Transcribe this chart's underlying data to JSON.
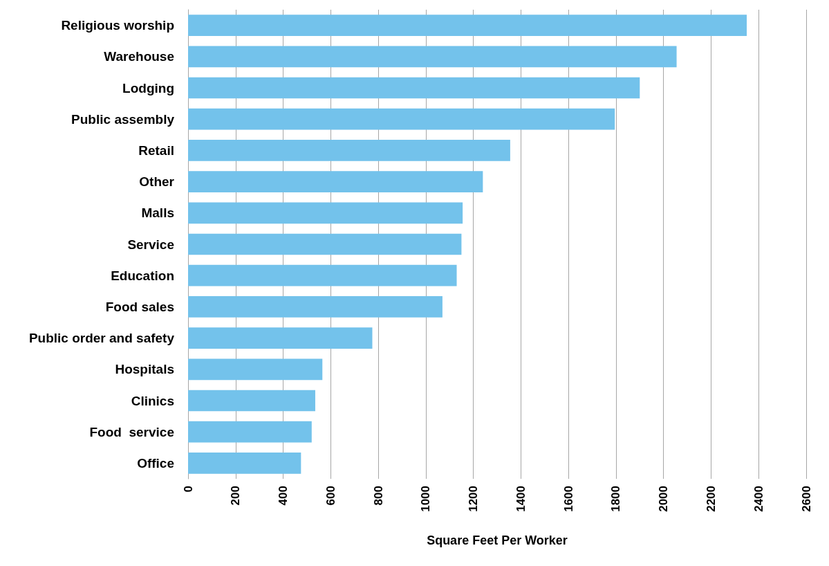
{
  "chart_data": {
    "type": "bar",
    "orientation": "horizontal",
    "xlabel": "Square Feet Per Worker",
    "categories": [
      "Religious worship",
      "Warehouse",
      "Lodging",
      "Public assembly",
      "Retail",
      "Other",
      "Malls",
      "Service",
      "Education",
      "Food sales",
      "Public order and safety",
      "Hospitals",
      "Clinics",
      "Food  service",
      "Office"
    ],
    "values": [
      2350,
      2055,
      1900,
      1795,
      1355,
      1240,
      1155,
      1150,
      1130,
      1070,
      775,
      565,
      535,
      520,
      475
    ],
    "color": "#73c2eb",
    "xlim": [
      0,
      2600
    ],
    "xticks": [
      0,
      200,
      400,
      600,
      800,
      1000,
      1200,
      1400,
      1600,
      1800,
      2000,
      2200,
      2400,
      2600
    ],
    "grid": "x"
  }
}
